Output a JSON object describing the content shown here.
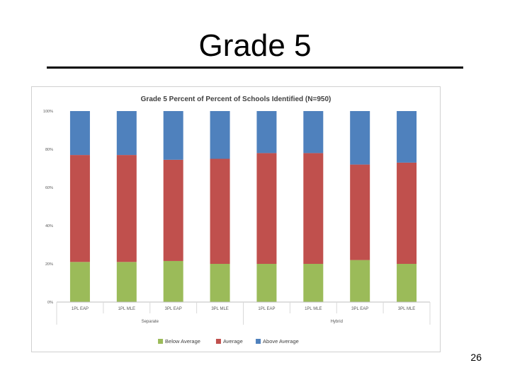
{
  "slide": {
    "title": "Grade 5",
    "page_number": "26"
  },
  "chart_data": {
    "type": "bar",
    "stacked": true,
    "title": "Grade 5 Percent of Percent of Schools Identified (N=950)",
    "categories": [
      "1PL EAP",
      "1PL MLE",
      "3PL EAP",
      "3PL MLE",
      "1PL EAP",
      "1PL MLE",
      "3PL EAP",
      "3PL MLE"
    ],
    "groups": [
      {
        "label": "Separate",
        "start": 0,
        "end": 3
      },
      {
        "label": "Hybrid",
        "start": 4,
        "end": 7
      }
    ],
    "series": [
      {
        "name": "Below Average",
        "color": "#9bbb59",
        "values": [
          21,
          21,
          21.5,
          20,
          20,
          20,
          22,
          20
        ]
      },
      {
        "name": "Average",
        "color": "#c0504d",
        "values": [
          56,
          56,
          53,
          55,
          58,
          58,
          50,
          53
        ]
      },
      {
        "name": "Above Average",
        "color": "#4f81bd",
        "values": [
          23,
          23,
          25.5,
          25,
          22,
          22,
          28,
          27
        ]
      }
    ],
    "yticks": [
      "0%",
      "20%",
      "40%",
      "60%",
      "80%",
      "100%"
    ],
    "ylim": [
      0,
      100
    ],
    "grid": false,
    "legend_position": "bottom"
  }
}
